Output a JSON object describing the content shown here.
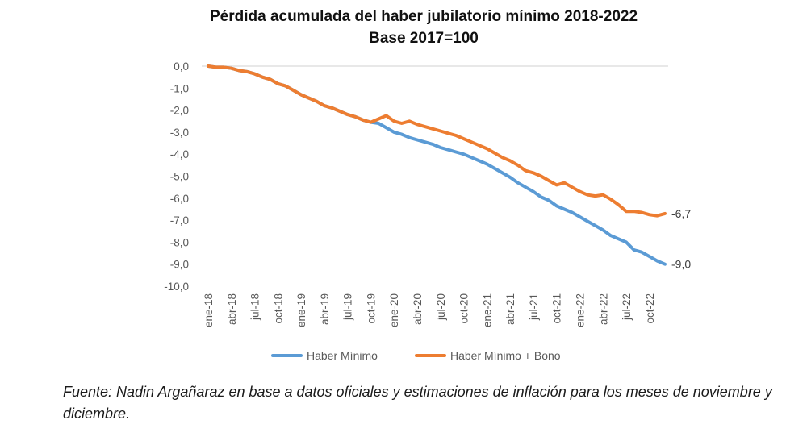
{
  "chart_data": {
    "type": "line",
    "title": "Pérdida acumulada del haber jubilatorio mínimo 2018-2022",
    "subtitle": "Base 2017=100",
    "xlabel": "",
    "ylabel": "",
    "ylim": [
      -10,
      0
    ],
    "yticks": [
      "0,0",
      "-1,0",
      "-2,0",
      "-3,0",
      "-4,0",
      "-5,0",
      "-6,0",
      "-7,0",
      "-8,0",
      "-9,0",
      "-10,0"
    ],
    "ytick_values": [
      0,
      -1,
      -2,
      -3,
      -4,
      -5,
      -6,
      -7,
      -8,
      -9,
      -10
    ],
    "x": [
      "ene-18",
      "feb-18",
      "mar-18",
      "abr-18",
      "may-18",
      "jun-18",
      "jul-18",
      "ago-18",
      "sep-18",
      "oct-18",
      "nov-18",
      "dic-18",
      "ene-19",
      "feb-19",
      "mar-19",
      "abr-19",
      "may-19",
      "jun-19",
      "jul-19",
      "ago-19",
      "sep-19",
      "oct-19",
      "nov-19",
      "dic-19",
      "ene-20",
      "feb-20",
      "mar-20",
      "abr-20",
      "may-20",
      "jun-20",
      "jul-20",
      "ago-20",
      "sep-20",
      "oct-20",
      "nov-20",
      "dic-20",
      "ene-21",
      "feb-21",
      "mar-21",
      "abr-21",
      "may-21",
      "jun-21",
      "jul-21",
      "ago-21",
      "sep-21",
      "oct-21",
      "nov-21",
      "dic-21",
      "ene-22",
      "feb-22",
      "mar-22",
      "abr-22",
      "may-22",
      "jun-22",
      "jul-22",
      "ago-22",
      "sep-22",
      "oct-22",
      "nov-22",
      "dic-22"
    ],
    "xtick_labels": [
      "ene-18",
      "abr-18",
      "jul-18",
      "oct-18",
      "ene-19",
      "abr-19",
      "jul-19",
      "oct-19",
      "ene-20",
      "abr-20",
      "jul-20",
      "oct-20",
      "ene-21",
      "abr-21",
      "jul-21",
      "oct-21",
      "ene-22",
      "abr-22",
      "jul-22",
      "oct-22"
    ],
    "xtick_every": 3,
    "grid": false,
    "zero_line": true,
    "legend": "bottom",
    "series": [
      {
        "name": "Haber Mínimo",
        "color": "#5B9BD5",
        "values": [
          0.0,
          -0.05,
          -0.05,
          -0.1,
          -0.2,
          -0.25,
          -0.35,
          -0.5,
          -0.6,
          -0.8,
          -0.9,
          -1.1,
          -1.3,
          -1.45,
          -1.6,
          -1.8,
          -1.9,
          -2.05,
          -2.2,
          -2.3,
          -2.45,
          -2.55,
          -2.6,
          -2.8,
          -3.0,
          -3.1,
          -3.25,
          -3.35,
          -3.45,
          -3.55,
          -3.7,
          -3.8,
          -3.9,
          -4.0,
          -4.15,
          -4.3,
          -4.45,
          -4.65,
          -4.85,
          -5.05,
          -5.3,
          -5.5,
          -5.7,
          -5.95,
          -6.1,
          -6.35,
          -6.5,
          -6.65,
          -6.85,
          -7.05,
          -7.25,
          -7.45,
          -7.7,
          -7.85,
          -8.0,
          -8.35,
          -8.45,
          -8.65,
          -8.85,
          -9.0
        ],
        "end_label": "-9,0"
      },
      {
        "name": "Haber Mínimo + Bono",
        "color": "#ED7D31",
        "values": [
          0.0,
          -0.05,
          -0.05,
          -0.1,
          -0.2,
          -0.25,
          -0.35,
          -0.5,
          -0.6,
          -0.8,
          -0.9,
          -1.1,
          -1.3,
          -1.45,
          -1.6,
          -1.8,
          -1.9,
          -2.05,
          -2.2,
          -2.3,
          -2.45,
          -2.55,
          -2.4,
          -2.25,
          -2.5,
          -2.6,
          -2.5,
          -2.65,
          -2.75,
          -2.85,
          -2.95,
          -3.05,
          -3.15,
          -3.3,
          -3.45,
          -3.6,
          -3.75,
          -3.95,
          -4.15,
          -4.3,
          -4.5,
          -4.75,
          -4.85,
          -5.0,
          -5.2,
          -5.4,
          -5.3,
          -5.5,
          -5.7,
          -5.85,
          -5.9,
          -5.85,
          -6.05,
          -6.3,
          -6.6,
          -6.6,
          -6.65,
          -6.75,
          -6.8,
          -6.7
        ],
        "end_label": "-6,7"
      }
    ]
  },
  "source_note": "Fuente: Nadin Argañaraz en base a datos oficiales y estimaciones de inflación para los meses de noviembre y diciembre."
}
